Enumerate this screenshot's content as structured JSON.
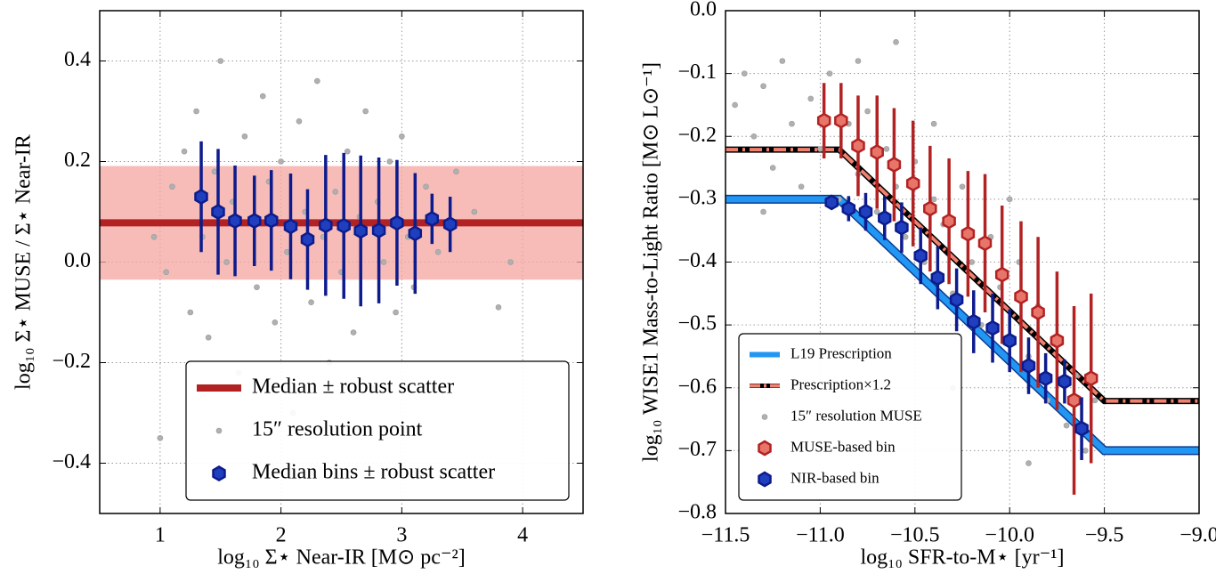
{
  "chart_data": [
    {
      "type": "scatter",
      "xlabel": "log₁₀ Σ⋆ Near-IR [M⊙ pc⁻²]",
      "ylabel": "log₁₀ Σ⋆ MUSE / Σ⋆ Near-IR",
      "xlim": [
        0.5,
        4.5
      ],
      "ylim": [
        -0.5,
        0.5
      ],
      "xticks": [
        1,
        2,
        3,
        4
      ],
      "yticks": [
        {
          "value": -0.4,
          "label": "−0.4"
        },
        {
          "value": -0.2,
          "label": "−0.2"
        },
        {
          "value": 0.0,
          "label": "0.0"
        },
        0.2,
        0.4
      ],
      "grid": true,
      "legend": "lower right",
      "series": [
        {
          "type": "band",
          "name": "Median ± robust scatter",
          "y": 0.078,
          "error": 0.113,
          "color": "#b22222",
          "fill": "#f4a6a0"
        },
        {
          "type": "scatter",
          "name": "15″ resolution point",
          "color": "#b0b0b0",
          "x": [
            0.95,
            1.05,
            1.1,
            1.2,
            1.25,
            1.3,
            1.35,
            1.4,
            1.45,
            1.5,
            1.55,
            1.6,
            1.65,
            1.7,
            1.75,
            1.8,
            1.85,
            1.9,
            1.95,
            2.0,
            2.05,
            2.1,
            2.15,
            2.2,
            2.25,
            2.3,
            2.35,
            2.4,
            2.45,
            2.5,
            2.55,
            2.6,
            2.65,
            2.7,
            2.75,
            2.8,
            2.85,
            2.9,
            2.95,
            3.0,
            3.05,
            3.1,
            3.2,
            3.3,
            3.45,
            3.6,
            3.8,
            1.0,
            2.25,
            3.9
          ],
          "values": [
            0.05,
            -0.02,
            0.15,
            0.22,
            -0.1,
            0.3,
            0.05,
            -0.15,
            0.18,
            0.4,
            0.0,
            0.12,
            -0.22,
            0.25,
            0.08,
            -0.05,
            0.33,
            0.16,
            -0.12,
            0.2,
            0.02,
            -0.3,
            0.28,
            0.1,
            -0.08,
            0.36,
            0.05,
            -0.2,
            0.14,
            -0.02,
            0.22,
            -0.14,
            0.09,
            0.3,
            -0.25,
            0.12,
            0.0,
            0.2,
            -0.1,
            0.25,
            0.05,
            -0.05,
            0.15,
            0.02,
            0.18,
            0.1,
            -0.09,
            -0.35,
            -0.42,
            0.0
          ]
        },
        {
          "type": "errorbar",
          "name": "Median bins ± robust scatter",
          "color": "#0d1b8c",
          "fill": "#1f3fbf",
          "x": [
            1.34,
            1.48,
            1.62,
            1.78,
            1.92,
            2.08,
            2.22,
            2.37,
            2.52,
            2.66,
            2.81,
            2.96,
            3.11,
            3.25,
            3.4
          ],
          "values": [
            0.13,
            0.1,
            0.082,
            0.082,
            0.083,
            0.071,
            0.045,
            0.073,
            0.072,
            0.062,
            0.063,
            0.078,
            0.057,
            0.086,
            0.075
          ],
          "errors": [
            0.11,
            0.125,
            0.11,
            0.09,
            0.1,
            0.105,
            0.1,
            0.14,
            0.145,
            0.15,
            0.145,
            0.125,
            0.12,
            0.05,
            0.055
          ]
        }
      ]
    },
    {
      "type": "scatter",
      "xlabel": "log₁₀ SFR-to-M⋆ [yr⁻¹]",
      "ylabel": "log₁₀ WISE1 Mass-to-Light Ratio [M⊙ L⊙⁻¹]",
      "xlim": [
        -11.5,
        -9.0
      ],
      "ylim": [
        -0.8,
        0.0
      ],
      "xticks": [
        {
          "value": -11.5,
          "label": "−11.5"
        },
        {
          "value": -11.0,
          "label": "−11.0"
        },
        {
          "value": -10.5,
          "label": "−10.5"
        },
        {
          "value": -10.0,
          "label": "−10.0"
        },
        {
          "value": -9.5,
          "label": "−9.5"
        },
        {
          "value": -9.0,
          "label": "−9.0"
        }
      ],
      "yticks": [
        {
          "value": -0.8,
          "label": "−0.8"
        },
        {
          "value": -0.7,
          "label": "−0.7"
        },
        {
          "value": -0.6,
          "label": "−0.6"
        },
        {
          "value": -0.5,
          "label": "−0.5"
        },
        {
          "value": -0.4,
          "label": "−0.4"
        },
        {
          "value": -0.3,
          "label": "−0.3"
        },
        {
          "value": -0.2,
          "label": "−0.2"
        },
        {
          "value": -0.1,
          "label": "−0.1"
        },
        {
          "value": 0.0,
          "label": "0.0"
        }
      ],
      "grid": true,
      "legend": "lower left",
      "series": [
        {
          "type": "line",
          "name": "L19 Prescription",
          "color": "#2196f3",
          "edge": "#0b3d91",
          "dash": false,
          "x": [
            -11.5,
            -10.9,
            -9.5,
            -9.0
          ],
          "values": [
            -0.3,
            -0.3,
            -0.7,
            -0.7
          ]
        },
        {
          "type": "line",
          "name": "Prescription×1.2",
          "color": "#f08070",
          "edge": "#000000",
          "dash": true,
          "x": [
            -11.5,
            -10.9,
            -9.5,
            -9.0
          ],
          "values": [
            -0.221,
            -0.221,
            -0.621,
            -0.621
          ]
        },
        {
          "type": "scatter",
          "name": "15″ resolution MUSE",
          "color": "#b0b0b0",
          "x": [
            -11.45,
            -11.4,
            -11.35,
            -11.3,
            -11.25,
            -11.2,
            -11.15,
            -11.1,
            -11.05,
            -11.0,
            -10.95,
            -10.9,
            -10.85,
            -10.8,
            -10.75,
            -10.7,
            -10.65,
            -10.6,
            -10.55,
            -10.5,
            -10.45,
            -10.4,
            -10.35,
            -10.3,
            -10.25,
            -10.2,
            -10.15,
            -10.1,
            -10.05,
            -10.0,
            -9.95,
            -9.9,
            -9.85,
            -9.8,
            -9.75,
            -9.7,
            -9.65,
            -9.6,
            -9.55,
            -10.6,
            -10.8,
            -11.3,
            -10.4,
            -10.0,
            -9.9,
            -10.3
          ],
          "values": [
            -0.15,
            -0.1,
            -0.2,
            -0.12,
            -0.25,
            -0.08,
            -0.18,
            -0.28,
            -0.14,
            -0.22,
            -0.1,
            -0.3,
            -0.18,
            -0.26,
            -0.16,
            -0.32,
            -0.22,
            -0.28,
            -0.36,
            -0.24,
            -0.4,
            -0.3,
            -0.34,
            -0.45,
            -0.28,
            -0.4,
            -0.5,
            -0.36,
            -0.44,
            -0.52,
            -0.4,
            -0.55,
            -0.47,
            -0.62,
            -0.52,
            -0.66,
            -0.58,
            -0.7,
            -0.62,
            -0.05,
            -0.08,
            -0.32,
            -0.18,
            -0.3,
            -0.72,
            -0.6
          ]
        },
        {
          "type": "errorbar",
          "name": "MUSE-based bin",
          "color": "#b22222",
          "fill": "#e8756a",
          "x": [
            -10.98,
            -10.89,
            -10.8,
            -10.7,
            -10.61,
            -10.51,
            -10.42,
            -10.32,
            -10.22,
            -10.13,
            -10.04,
            -9.94,
            -9.85,
            -9.75,
            -9.66,
            -9.57
          ],
          "values": [
            -0.175,
            -0.175,
            -0.215,
            -0.225,
            -0.245,
            -0.275,
            -0.315,
            -0.335,
            -0.355,
            -0.37,
            -0.42,
            -0.455,
            -0.48,
            -0.525,
            -0.62,
            -0.585
          ],
          "errors": [
            0.06,
            0.06,
            0.08,
            0.09,
            0.09,
            0.1,
            0.1,
            0.1,
            0.1,
            0.11,
            0.11,
            0.12,
            0.12,
            0.11,
            0.15,
            0.135
          ]
        },
        {
          "type": "errorbar",
          "name": "NIR-based bin",
          "color": "#0d1b8c",
          "fill": "#1f3fbf",
          "x": [
            -10.94,
            -10.85,
            -10.76,
            -10.66,
            -10.57,
            -10.47,
            -10.38,
            -10.28,
            -10.19,
            -10.09,
            -10.0,
            -9.9,
            -9.81,
            -9.71,
            -9.62
          ],
          "values": [
            -0.305,
            -0.315,
            -0.32,
            -0.33,
            -0.345,
            -0.39,
            -0.425,
            -0.46,
            -0.495,
            -0.505,
            -0.525,
            -0.565,
            -0.585,
            -0.59,
            -0.665
          ],
          "errors": [
            0.01,
            0.02,
            0.03,
            0.035,
            0.04,
            0.045,
            0.05,
            0.05,
            0.05,
            0.055,
            0.05,
            0.045,
            0.04,
            0.035,
            0.05
          ]
        }
      ]
    }
  ]
}
